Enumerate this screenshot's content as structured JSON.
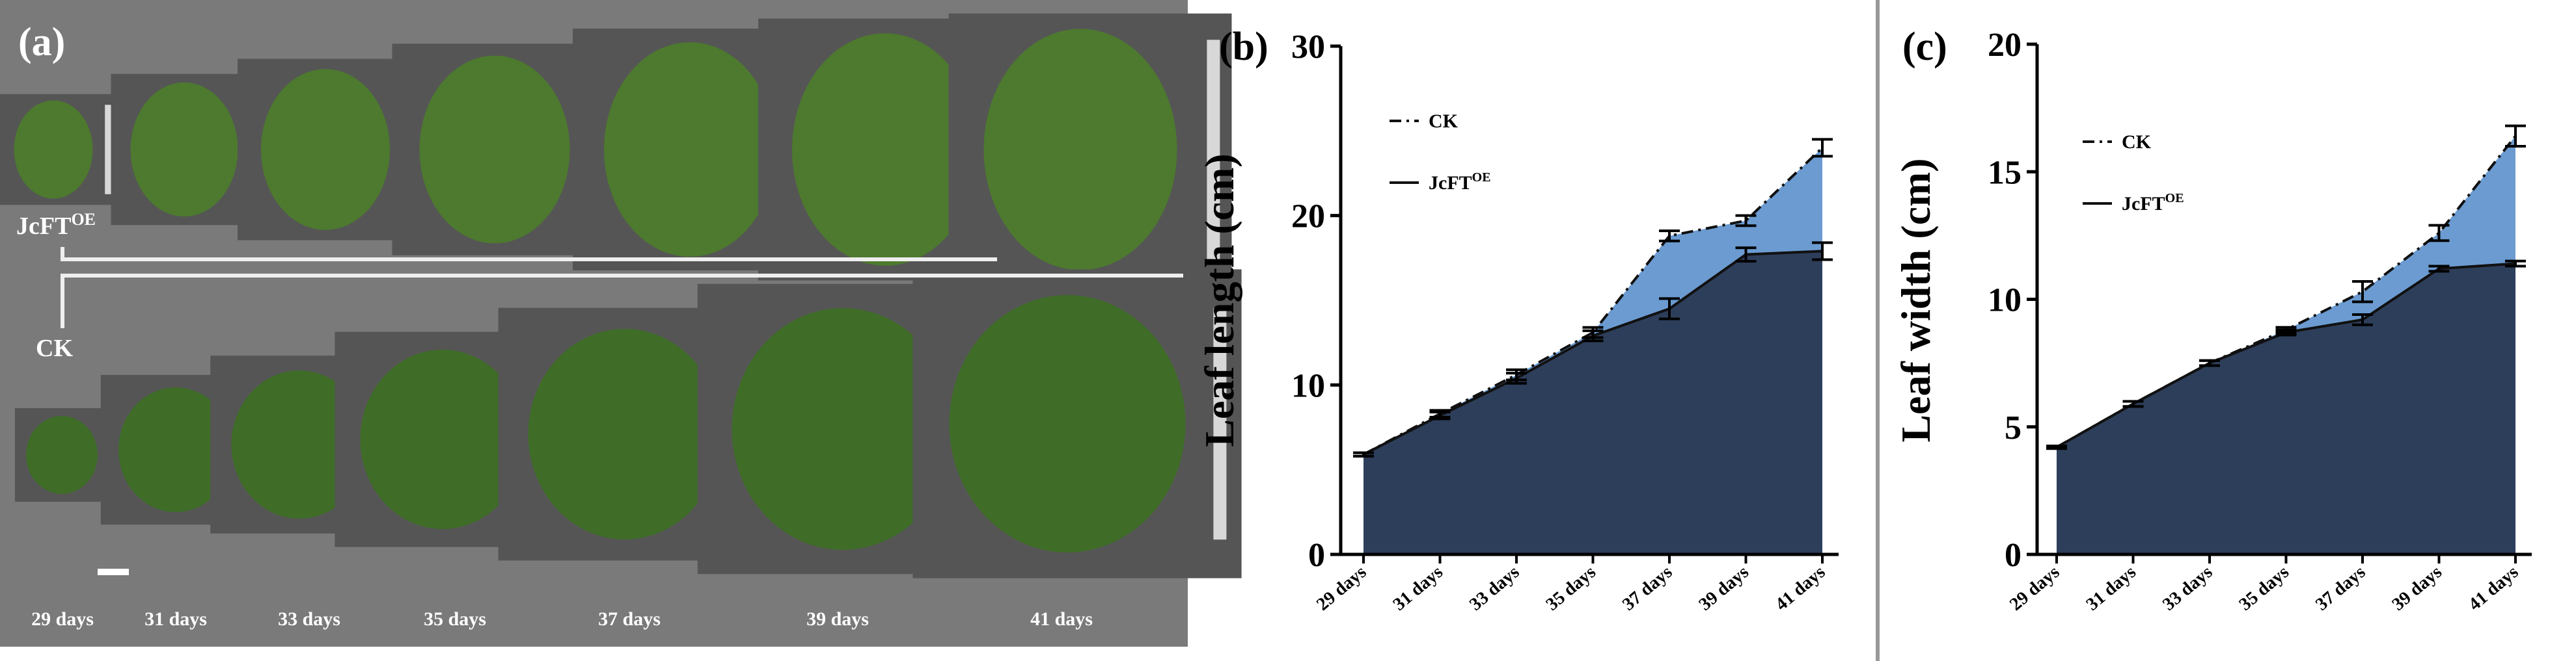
{
  "panel_a": {
    "label": "(a)",
    "rows": [
      {
        "label": "JcFT",
        "superscript": "OE"
      },
      {
        "label": "CK"
      }
    ],
    "days": [
      "29 days",
      "31 days",
      "33 days",
      "35 days",
      "37 days",
      "39 days",
      "41 days"
    ]
  },
  "chart_data": [
    {
      "type": "area",
      "panel_label": "(b)",
      "y_label": "Leaf length (cm)",
      "categories": [
        "29 days",
        "31 days",
        "33 days",
        "35 days",
        "37 days",
        "39 days",
        "41 days"
      ],
      "series": [
        {
          "name": "CK",
          "color": "#6b9bd1",
          "line_style": "dashdot",
          "values": [
            5.9,
            8.3,
            10.6,
            13.1,
            18.8,
            19.7,
            24.0
          ],
          "errors": [
            0.1,
            0.2,
            0.3,
            0.3,
            0.3,
            0.3,
            0.5
          ]
        },
        {
          "name": "JcFT",
          "name_superscript": "OE",
          "color": "#2d3e5a",
          "line_style": "solid",
          "values": [
            5.9,
            8.2,
            10.4,
            12.9,
            14.5,
            17.7,
            17.9
          ],
          "errors": [
            0.1,
            0.2,
            0.3,
            0.3,
            0.6,
            0.4,
            0.5
          ]
        }
      ],
      "ylim": [
        0,
        30
      ],
      "yticks": [
        0,
        10,
        20,
        30
      ],
      "legend": "upper left"
    },
    {
      "type": "area",
      "panel_label": "(c)",
      "y_label": "Leaf width (cm)",
      "categories": [
        "29 days",
        "31 days",
        "33 days",
        "35 days",
        "37 days",
        "39 days",
        "41 days"
      ],
      "series": [
        {
          "name": "CK",
          "color": "#6b9bd1",
          "line_style": "dashdot",
          "values": [
            4.2,
            5.9,
            7.5,
            8.8,
            10.3,
            12.6,
            16.4
          ],
          "errors": [
            0.05,
            0.1,
            0.1,
            0.1,
            0.4,
            0.3,
            0.4
          ]
        },
        {
          "name": "JcFT",
          "name_superscript": "OE",
          "color": "#2d3e5a",
          "line_style": "solid",
          "values": [
            4.2,
            5.9,
            7.5,
            8.7,
            9.2,
            11.2,
            11.4
          ],
          "errors": [
            0.05,
            0.1,
            0.1,
            0.1,
            0.2,
            0.1,
            0.1
          ]
        }
      ],
      "ylim": [
        0,
        20
      ],
      "yticks": [
        0,
        5,
        10,
        15,
        20
      ],
      "legend": "upper left"
    }
  ]
}
